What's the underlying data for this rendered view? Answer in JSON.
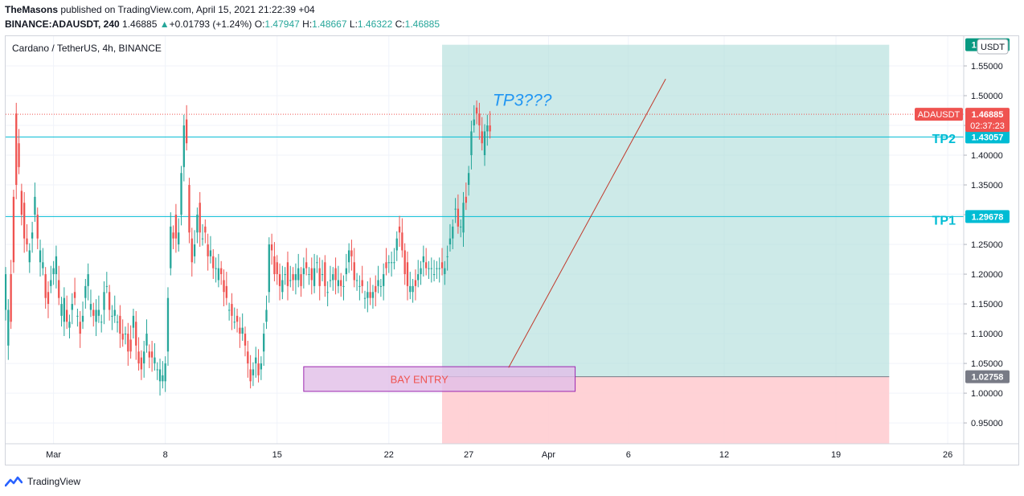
{
  "header": {
    "author": "TheMasons",
    "published_text": "published on TradingView.com, April 15, 2021 21:22:39 +04"
  },
  "quote_line": {
    "symbol": "BINANCE:ADAUSDT, 240",
    "last": "1.46885",
    "change": "+0.01793 (+1.24%)",
    "o_label": "O:",
    "o_value": "1.47947",
    "h_label": "H:",
    "h_value": "1.48667",
    "l_label": "L:",
    "l_value": "1.46322",
    "c_label": "C:",
    "c_value": "1.46885",
    "up_color": "#26a69a"
  },
  "footer": {
    "brand": "TradingView",
    "logo_icon": "tradingview-logo-icon"
  },
  "chart_data": {
    "type": "candlestick",
    "title": "Cardano / TetherUS, 4h, BINANCE",
    "currency_label": "USDT",
    "ylim": [
      0.915,
      1.6
    ],
    "y_ticks": [
      "0.95000",
      "1.00000",
      "1.05000",
      "1.10000",
      "1.15000",
      "1.20000",
      "1.25000",
      "1.30000",
      "1.35000",
      "1.40000",
      "1.45000",
      "1.50000",
      "1.55000"
    ],
    "x_range": [
      "2021-02-26",
      "2021-04-27"
    ],
    "x_ticks": [
      {
        "label": "Mar",
        "date": "2021-03-01"
      },
      {
        "label": "8",
        "date": "2021-03-08"
      },
      {
        "label": "15",
        "date": "2021-03-15"
      },
      {
        "label": "22",
        "date": "2021-03-22"
      },
      {
        "label": "27",
        "date": "2021-03-27"
      },
      {
        "label": "Apr",
        "date": "2021-04-01"
      },
      {
        "label": "6",
        "date": "2021-04-06"
      },
      {
        "label": "12",
        "date": "2021-04-12"
      },
      {
        "label": "19",
        "date": "2021-04-19"
      },
      {
        "label": "26",
        "date": "2021-04-26"
      }
    ],
    "colors": {
      "up": "#26a69a",
      "down": "#ef5350"
    },
    "candles": {
      "start": "2021-02-26T00:00",
      "interval_hours": 4,
      "points": [
        [
          1.14,
          1.2
        ],
        [
          1.08,
          1.14
        ],
        [
          1.2,
          1.12
        ],
        [
          1.33,
          1.22
        ],
        [
          1.47,
          1.35
        ],
        [
          1.42,
          1.38
        ],
        [
          1.34,
          1.3
        ],
        [
          1.32,
          1.26
        ],
        [
          1.26,
          1.25
        ],
        [
          1.22,
          1.24
        ],
        [
          1.26,
          1.27
        ],
        [
          1.3,
          1.33
        ],
        [
          1.3,
          1.26
        ],
        [
          1.22,
          1.24
        ],
        [
          1.21,
          1.22
        ],
        [
          1.2,
          1.16
        ],
        [
          1.17,
          1.15
        ],
        [
          1.18,
          1.19
        ],
        [
          1.2,
          1.21
        ],
        [
          1.2,
          1.23
        ],
        [
          1.19,
          1.16
        ],
        [
          1.13,
          1.15
        ],
        [
          1.12,
          1.16
        ],
        [
          1.14,
          1.12
        ],
        [
          1.11,
          1.12
        ],
        [
          1.14,
          1.15
        ],
        [
          1.17,
          1.16
        ],
        [
          1.13,
          1.13
        ],
        [
          1.12,
          1.1
        ],
        [
          1.12,
          1.13
        ],
        [
          1.16,
          1.18
        ],
        [
          1.18,
          1.2
        ],
        [
          1.14,
          1.15
        ],
        [
          1.14,
          1.13
        ],
        [
          1.12,
          1.14
        ],
        [
          1.13,
          1.14
        ],
        [
          1.12,
          1.12
        ],
        [
          1.14,
          1.17
        ],
        [
          1.18,
          1.18
        ],
        [
          1.17,
          1.14
        ],
        [
          1.13,
          1.13
        ],
        [
          1.13,
          1.14
        ],
        [
          1.12,
          1.12
        ],
        [
          1.13,
          1.1
        ],
        [
          1.1,
          1.09
        ],
        [
          1.1,
          1.1
        ],
        [
          1.1,
          1.07
        ],
        [
          1.09,
          1.07
        ],
        [
          1.11,
          1.13
        ],
        [
          1.12,
          1.08
        ],
        [
          1.07,
          1.05
        ],
        [
          1.06,
          1.04
        ],
        [
          1.05,
          1.07
        ],
        [
          1.08,
          1.1
        ],
        [
          1.07,
          1.06
        ],
        [
          1.07,
          1.06
        ],
        [
          1.05,
          1.06
        ],
        [
          1.04,
          1.04
        ],
        [
          1.02,
          1.04
        ],
        [
          1.02,
          1.03
        ],
        [
          1.02,
          1.05
        ],
        [
          1.07,
          1.16
        ],
        [
          1.21,
          1.28
        ],
        [
          1.27,
          1.26
        ],
        [
          1.3,
          1.26
        ],
        [
          1.25,
          1.27
        ],
        [
          1.3,
          1.37
        ],
        [
          1.38,
          1.45
        ],
        [
          1.46,
          1.42
        ],
        [
          1.35,
          1.27
        ],
        [
          1.26,
          1.22
        ],
        [
          1.23,
          1.25
        ],
        [
          1.27,
          1.3
        ],
        [
          1.32,
          1.27
        ],
        [
          1.26,
          1.26
        ],
        [
          1.28,
          1.27
        ],
        [
          1.25,
          1.23
        ],
        [
          1.23,
          1.24
        ],
        [
          1.23,
          1.21
        ],
        [
          1.21,
          1.21
        ],
        [
          1.19,
          1.21
        ],
        [
          1.21,
          1.2
        ],
        [
          1.19,
          1.17
        ],
        [
          1.18,
          1.16
        ],
        [
          1.14,
          1.14
        ],
        [
          1.15,
          1.13
        ],
        [
          1.12,
          1.12
        ],
        [
          1.13,
          1.12
        ],
        [
          1.11,
          1.1
        ],
        [
          1.1,
          1.11
        ],
        [
          1.1,
          1.08
        ],
        [
          1.07,
          1.05
        ],
        [
          1.04,
          1.02
        ],
        [
          1.03,
          1.04
        ],
        [
          1.05,
          1.06
        ],
        [
          1.05,
          1.03
        ],
        [
          1.04,
          1.05
        ],
        [
          1.07,
          1.1
        ],
        [
          1.12,
          1.14
        ],
        [
          1.17,
          1.25
        ],
        [
          1.25,
          1.24
        ],
        [
          1.23,
          1.2
        ],
        [
          1.22,
          1.2
        ],
        [
          1.2,
          1.18
        ],
        [
          1.17,
          1.19
        ],
        [
          1.2,
          1.2
        ],
        [
          1.22,
          1.18
        ],
        [
          1.19,
          1.19
        ],
        [
          1.2,
          1.19
        ],
        [
          1.19,
          1.2
        ],
        [
          1.19,
          1.21
        ],
        [
          1.2,
          1.18
        ],
        [
          1.2,
          1.21
        ],
        [
          1.22,
          1.21
        ],
        [
          1.2,
          1.2
        ],
        [
          1.21,
          1.19
        ],
        [
          1.18,
          1.21
        ],
        [
          1.22,
          1.22
        ],
        [
          1.21,
          1.18
        ],
        [
          1.2,
          1.2
        ],
        [
          1.22,
          1.18
        ],
        [
          1.17,
          1.17
        ],
        [
          1.19,
          1.19
        ],
        [
          1.19,
          1.2
        ],
        [
          1.21,
          1.19
        ],
        [
          1.18,
          1.19
        ],
        [
          1.19,
          1.18
        ],
        [
          1.18,
          1.18
        ],
        [
          1.2,
          1.21
        ],
        [
          1.22,
          1.24
        ],
        [
          1.24,
          1.23
        ],
        [
          1.22,
          1.19
        ],
        [
          1.19,
          1.19
        ],
        [
          1.18,
          1.18
        ],
        [
          1.19,
          1.18
        ],
        [
          1.16,
          1.16
        ],
        [
          1.16,
          1.17
        ],
        [
          1.17,
          1.16
        ],
        [
          1.16,
          1.17
        ],
        [
          1.18,
          1.17
        ],
        [
          1.18,
          1.19
        ],
        [
          1.18,
          1.18
        ],
        [
          1.18,
          1.2
        ],
        [
          1.22,
          1.21
        ],
        [
          1.22,
          1.22
        ],
        [
          1.22,
          1.22
        ],
        [
          1.22,
          1.22
        ],
        [
          1.24,
          1.26
        ],
        [
          1.28,
          1.27
        ],
        [
          1.27,
          1.24
        ],
        [
          1.24,
          1.2
        ],
        [
          1.22,
          1.18
        ],
        [
          1.17,
          1.18
        ],
        [
          1.17,
          1.18
        ],
        [
          1.19,
          1.18
        ],
        [
          1.19,
          1.2
        ],
        [
          1.2,
          1.21
        ],
        [
          1.22,
          1.23
        ],
        [
          1.22,
          1.21
        ],
        [
          1.21,
          1.21
        ],
        [
          1.21,
          1.21
        ],
        [
          1.2,
          1.2
        ],
        [
          1.21,
          1.21
        ],
        [
          1.21,
          1.21
        ],
        [
          1.22,
          1.21
        ],
        [
          1.2,
          1.21
        ],
        [
          1.23,
          1.23
        ],
        [
          1.25,
          1.26
        ],
        [
          1.26,
          1.28
        ],
        [
          1.31,
          1.31
        ],
        [
          1.31,
          1.28
        ],
        [
          1.28,
          1.28
        ],
        [
          1.27,
          1.32
        ],
        [
          1.33,
          1.32
        ],
        [
          1.35,
          1.37
        ],
        [
          1.4,
          1.44
        ],
        [
          1.45,
          1.46
        ],
        [
          1.48,
          1.47
        ],
        [
          1.47,
          1.45
        ],
        [
          1.44,
          1.42
        ],
        [
          1.4,
          1.44
        ],
        [
          1.44,
          1.45
        ],
        [
          1.45,
          1.44
        ]
      ]
    },
    "horizontal_lines": [
      {
        "name": "TP2",
        "value": 1.43057,
        "color": "#00bcd4"
      },
      {
        "name": "TP1",
        "value": 1.29678,
        "color": "#00bcd4"
      }
    ],
    "last_price_line": {
      "value": 1.46885,
      "color": "#ef5350"
    },
    "price_labels": [
      {
        "text": "1.58557",
        "value": 1.58557,
        "color": "#089981"
      },
      {
        "text": "1.43057",
        "value": 1.43057,
        "color": "#00bcd4"
      },
      {
        "text": "1.29678",
        "value": 1.29678,
        "color": "#00bcd4"
      },
      {
        "text": "1.02758",
        "value": 1.02758,
        "color": "#787b86"
      }
    ],
    "last_price_badge": {
      "symbol": "ADAUSDT",
      "price": "1.46885",
      "countdown": "02:37:23",
      "color": "#ef5350"
    },
    "position_tool": {
      "start": "2021-03-25T08:00",
      "end": "2021-04-22T08:00",
      "entry": 1.02758,
      "target": 1.58557,
      "stop": 0.915,
      "profit_color": "#b2dfdb",
      "loss_color": "#ffcdd2"
    },
    "entry_box": {
      "label": "BAY ENTRY",
      "start": "2021-03-16T16:00",
      "end": "2021-04-02T16:00",
      "top": 1.0445,
      "bottom": 1.003,
      "fill": "#e1bee7",
      "border": "#9c27b0",
      "text_color": "#ef5350"
    },
    "trend_line": {
      "from": {
        "date": "2021-03-29T12:00",
        "value": 1.043
      },
      "to": {
        "date": "2021-04-08T08:00",
        "value": 1.528
      },
      "color": "#c0392b"
    },
    "annotations": [
      {
        "text": "TP3???",
        "date": "2021-03-28T12:00",
        "value": 1.483,
        "color": "#2196f3",
        "style": "italic"
      },
      {
        "text": "TP2",
        "date": "2021-04-22T00:00",
        "value": 1.42,
        "color": "#00bcd4",
        "style": "bold"
      },
      {
        "text": "TP1",
        "date": "2021-04-22T00:00",
        "value": 1.283,
        "color": "#00bcd4",
        "style": "bold"
      }
    ]
  }
}
